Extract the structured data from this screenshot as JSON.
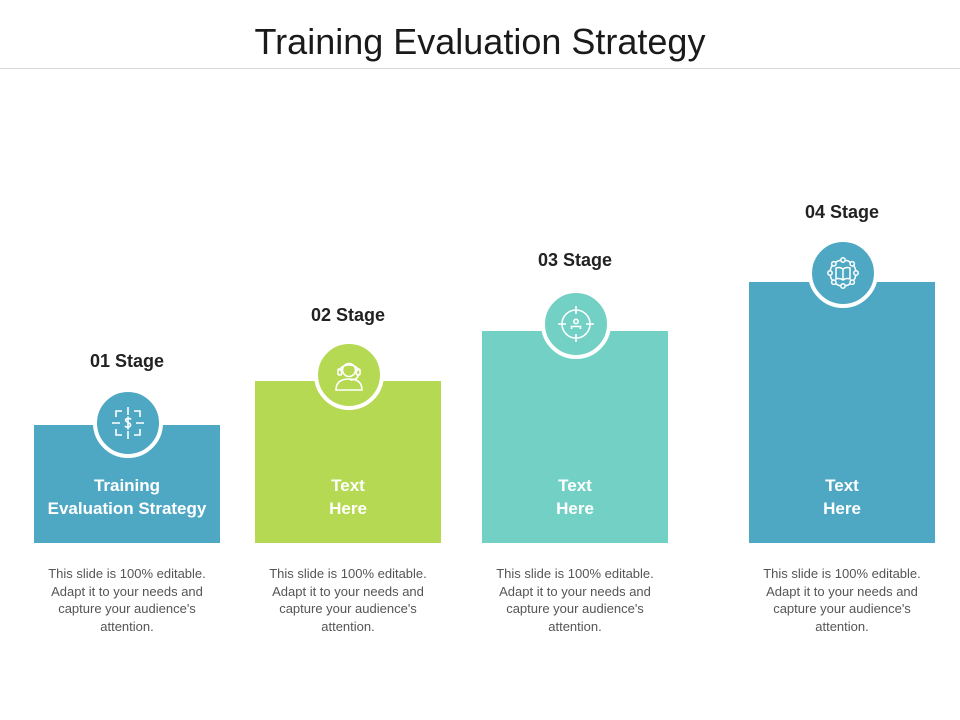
{
  "title": "Training Evaluation Strategy",
  "colors": {
    "blue": "#4fa8c3",
    "green": "#b5d952",
    "teal": "#72d1c4"
  },
  "stages": [
    {
      "label": "01 Stage",
      "text_line1": "Training",
      "text_line2": "Evaluation Strategy",
      "icon": "target-dollar-icon",
      "description": "This slide is 100% editable. Adapt it to your needs and capture your audience's attention."
    },
    {
      "label": "02 Stage",
      "text_line1": "Text",
      "text_line2": "Here",
      "icon": "headset-agent-icon",
      "description": "This slide is 100% editable. Adapt it to your needs and capture your audience's attention."
    },
    {
      "label": "03 Stage",
      "text_line1": "Text",
      "text_line2": "Here",
      "icon": "crosshair-user-icon",
      "description": "This slide is 100% editable. Adapt it to your needs and capture your audience's attention."
    },
    {
      "label": "04 Stage",
      "text_line1": "Text",
      "text_line2": "Here",
      "icon": "book-network-icon",
      "description": "This slide is 100% editable. Adapt it to your needs and capture your audience's attention."
    }
  ]
}
